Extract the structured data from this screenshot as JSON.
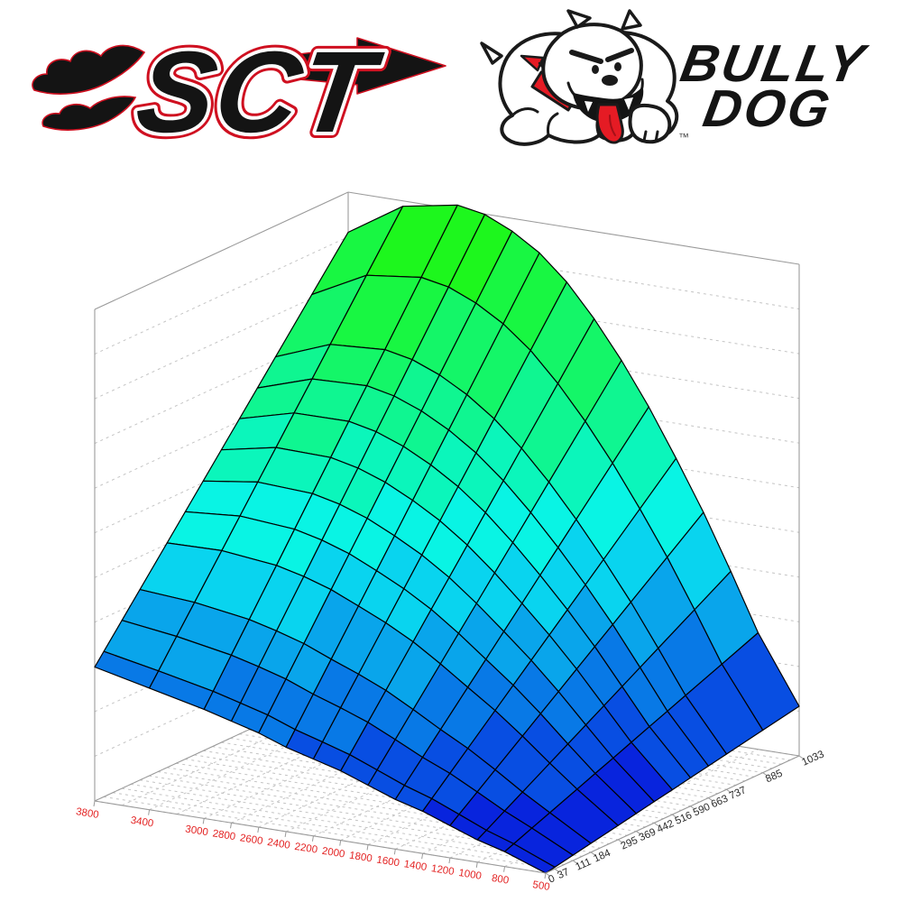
{
  "page": {
    "background": "#ffffff"
  },
  "logos": {
    "sct": {
      "text": "SCT",
      "fill": "#141414",
      "outline": "#cf1020"
    },
    "bully_dog": {
      "line1": "BULLY",
      "line2": "DOG",
      "tm": "™",
      "fill": "#141414",
      "red": "#e51b24"
    }
  },
  "chart_data": {
    "type": "surface3d",
    "title": "",
    "xlabel": "",
    "ylabel": "",
    "x_axis": {
      "min": 500,
      "max": 3800,
      "tick_labels": [
        "3800",
        "3400",
        "3000",
        "2800",
        "2600",
        "2400",
        "2200",
        "2000",
        "1800",
        "1600",
        "1400",
        "1200",
        "1000",
        "800",
        "500"
      ],
      "tick_values": [
        3800,
        3400,
        3000,
        2800,
        2600,
        2400,
        2200,
        2000,
        1800,
        1600,
        1400,
        1200,
        1000,
        800,
        500
      ],
      "tick_color": "#e32222",
      "label_rotation_deg": 9
    },
    "y_axis": {
      "min": 0,
      "max": 1033,
      "tick_labels": [
        "0",
        "37",
        "111",
        "184",
        "295",
        "369",
        "442",
        "516",
        "590",
        "663",
        "737",
        "885",
        "1033"
      ],
      "tick_values": [
        0,
        37,
        111,
        184,
        295,
        369,
        442,
        516,
        590,
        663,
        737,
        885,
        1033
      ],
      "tick_color": "#2a2a2a",
      "label_rotation_deg": -24
    },
    "z_axis": {
      "tick_labels": [],
      "wall_gridline_count": 10
    },
    "surface": {
      "rpm_points": [
        3800,
        3400,
        3000,
        2800,
        2600,
        2400,
        2200,
        2000,
        1800,
        1600,
        1400,
        1200,
        1000,
        800,
        500
      ],
      "load_points": [
        0,
        37,
        111,
        184,
        295,
        369,
        442,
        516,
        590,
        663,
        737,
        885,
        1033
      ],
      "z_front": [
        0.27,
        0.245,
        0.22,
        0.205,
        0.19,
        0.17,
        0.155,
        0.14,
        0.12,
        0.1,
        0.085,
        0.065,
        0.045,
        0.03,
        0.0
      ],
      "z_back": [
        0.91,
        0.98,
        1.0,
        0.99,
        0.965,
        0.93,
        0.88,
        0.815,
        0.74,
        0.655,
        0.56,
        0.46,
        0.35,
        0.235,
        0.1
      ],
      "z_rule": "z(rpm,load) = z_front + (z_back - z_front) * load/1033"
    },
    "floor_grid": {
      "rpm_lines": [
        3800,
        3600,
        3400,
        3200,
        3000,
        2800,
        2600,
        2400,
        2200,
        2000,
        1800,
        1600,
        1400,
        1200,
        1000,
        800,
        500
      ],
      "load_line_divisions": 28
    },
    "colors": {
      "bins": 11,
      "low_hue": 232,
      "high_hue": 120,
      "low_light": 45,
      "high_light": 54,
      "saturation": 93,
      "mesh_stroke": "#000000",
      "axis_line": "#9a9a9a",
      "grid_dash": "#c4c4c4"
    },
    "legend": {
      "visible": false
    },
    "grid_on": true
  }
}
